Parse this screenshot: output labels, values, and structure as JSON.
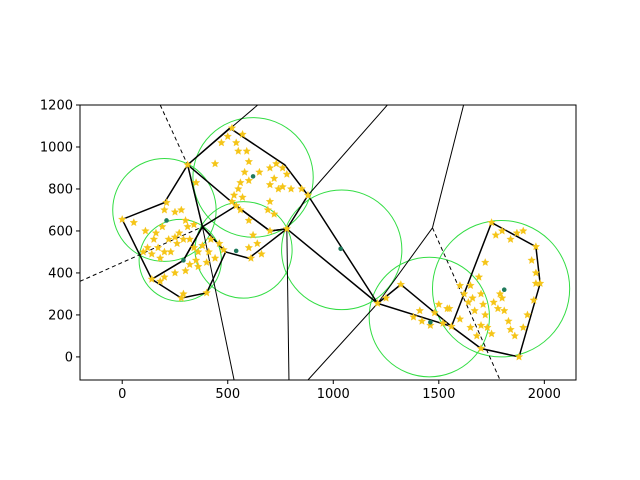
{
  "chart_data": {
    "type": "scatter",
    "title": "",
    "xlabel": "",
    "ylabel": "",
    "xlim": [
      -200,
      2150
    ],
    "ylim": [
      -110,
      1200
    ],
    "x_ticks": [
      0,
      500,
      1000,
      1500,
      2000
    ],
    "y_ticks": [
      0,
      200,
      400,
      600,
      800,
      1000,
      1200
    ],
    "grid": false,
    "legend": "none",
    "colors": {
      "points": "#f5c518",
      "sites": "#1f7a5c",
      "circles": "#33dd44",
      "edges": "#000000"
    },
    "site_points": [
      {
        "x": 210,
        "y": 650
      },
      {
        "x": 290,
        "y": 460
      },
      {
        "x": 540,
        "y": 505
      },
      {
        "x": 620,
        "y": 860
      },
      {
        "x": 1035,
        "y": 515
      },
      {
        "x": 1460,
        "y": 165
      },
      {
        "x": 1810,
        "y": 320
      }
    ],
    "circles": [
      {
        "cx": 200,
        "cy": 700,
        "r": 245
      },
      {
        "cx": 275,
        "cy": 460,
        "r": 195
      },
      {
        "cx": 575,
        "cy": 510,
        "r": 230
      },
      {
        "cx": 620,
        "cy": 855,
        "r": 285
      },
      {
        "cx": 1040,
        "cy": 510,
        "r": 285
      },
      {
        "cx": 1455,
        "cy": 190,
        "r": 285
      },
      {
        "cx": 1795,
        "cy": 325,
        "r": 325
      }
    ],
    "hulls": [
      [
        [
          0,
          655
        ],
        [
          200,
          735
        ],
        [
          310,
          915
        ],
        [
          380,
          620
        ],
        [
          290,
          460
        ],
        [
          140,
          370
        ],
        [
          0,
          655
        ]
      ],
      [
        [
          140,
          370
        ],
        [
          280,
          280
        ],
        [
          400,
          305
        ],
        [
          490,
          500
        ],
        [
          380,
          620
        ],
        [
          290,
          460
        ],
        [
          140,
          370
        ]
      ],
      [
        [
          490,
          500
        ],
        [
          600,
          470
        ],
        [
          780,
          610
        ],
        [
          700,
          600
        ],
        [
          540,
          720
        ],
        [
          380,
          620
        ],
        [
          490,
          500
        ]
      ],
      [
        [
          310,
          915
        ],
        [
          510,
          1090
        ],
        [
          770,
          915
        ],
        [
          880,
          770
        ],
        [
          780,
          610
        ],
        [
          700,
          600
        ],
        [
          540,
          720
        ],
        [
          310,
          915
        ]
      ],
      [
        [
          880,
          770
        ],
        [
          1210,
          255
        ],
        [
          780,
          610
        ]
      ],
      [
        [
          1210,
          255
        ],
        [
          1320,
          345
        ],
        [
          1560,
          145
        ],
        [
          1210,
          255
        ]
      ],
      [
        [
          1560,
          145
        ],
        [
          1750,
          640
        ],
        [
          1960,
          525
        ],
        [
          1980,
          350
        ],
        [
          1880,
          0
        ],
        [
          1700,
          40
        ],
        [
          1560,
          145
        ]
      ]
    ],
    "voronoi_edges": [
      [
        [
          700,
          1250
        ],
        [
          310,
          915
        ]
      ],
      [
        [
          310,
          915
        ],
        [
          380,
          620
        ]
      ],
      [
        [
          380,
          620
        ],
        [
          530,
          -110
        ]
      ],
      [
        [
          780,
          610
        ],
        [
          790,
          -110
        ]
      ],
      [
        [
          880,
          770
        ],
        [
          1300,
          1250
        ]
      ],
      [
        [
          1210,
          255
        ],
        [
          880,
          -110
        ]
      ],
      [
        [
          1210,
          255
        ],
        [
          1470,
          615
        ]
      ],
      [
        [
          1470,
          615
        ],
        [
          1630,
          1250
        ]
      ]
    ],
    "voronoi_edges_dashed": [
      [
        [
          180,
          1200
        ],
        [
          310,
          915
        ]
      ],
      [
        [
          -200,
          360
        ],
        [
          380,
          620
        ]
      ],
      [
        [
          1470,
          615
        ],
        [
          1790,
          -110
        ]
      ]
    ],
    "points": [
      [
        0,
        655
      ],
      [
        55,
        640
      ],
      [
        110,
        600
      ],
      [
        150,
        560
      ],
      [
        170,
        520
      ],
      [
        120,
        520
      ],
      [
        100,
        500
      ],
      [
        140,
        490
      ],
      [
        160,
        590
      ],
      [
        190,
        620
      ],
      [
        200,
        700
      ],
      [
        210,
        735
      ],
      [
        250,
        690
      ],
      [
        280,
        700
      ],
      [
        300,
        650
      ],
      [
        340,
        630
      ],
      [
        310,
        620
      ],
      [
        270,
        590
      ],
      [
        250,
        570
      ],
      [
        220,
        560
      ],
      [
        200,
        500
      ],
      [
        180,
        470
      ],
      [
        230,
        500
      ],
      [
        260,
        540
      ],
      [
        290,
        560
      ],
      [
        320,
        560
      ],
      [
        340,
        520
      ],
      [
        360,
        500
      ],
      [
        380,
        530
      ],
      [
        410,
        500
      ],
      [
        420,
        560
      ],
      [
        460,
        540
      ],
      [
        480,
        510
      ],
      [
        440,
        470
      ],
      [
        400,
        450
      ],
      [
        350,
        460
      ],
      [
        320,
        440
      ],
      [
        300,
        410
      ],
      [
        250,
        400
      ],
      [
        200,
        380
      ],
      [
        140,
        370
      ],
      [
        180,
        360
      ],
      [
        280,
        280
      ],
      [
        290,
        300
      ],
      [
        400,
        305
      ],
      [
        360,
        430
      ],
      [
        310,
        915
      ],
      [
        350,
        830
      ],
      [
        440,
        920
      ],
      [
        470,
        1020
      ],
      [
        500,
        1050
      ],
      [
        520,
        1090
      ],
      [
        570,
        1060
      ],
      [
        590,
        980
      ],
      [
        550,
        980
      ],
      [
        540,
        1020
      ],
      [
        600,
        930
      ],
      [
        580,
        880
      ],
      [
        600,
        840
      ],
      [
        560,
        830
      ],
      [
        550,
        800
      ],
      [
        530,
        770
      ],
      [
        520,
        740
      ],
      [
        540,
        720
      ],
      [
        570,
        760
      ],
      [
        650,
        880
      ],
      [
        700,
        900
      ],
      [
        730,
        920
      ],
      [
        760,
        900
      ],
      [
        780,
        870
      ],
      [
        720,
        850
      ],
      [
        700,
        820
      ],
      [
        740,
        800
      ],
      [
        760,
        810
      ],
      [
        800,
        800
      ],
      [
        850,
        800
      ],
      [
        880,
        770
      ],
      [
        700,
        740
      ],
      [
        690,
        700
      ],
      [
        720,
        680
      ],
      [
        700,
        600
      ],
      [
        780,
        610
      ],
      [
        600,
        520
      ],
      [
        610,
        470
      ],
      [
        660,
        490
      ],
      [
        640,
        540
      ],
      [
        620,
        580
      ],
      [
        600,
        650
      ],
      [
        560,
        700
      ],
      [
        1210,
        255
      ],
      [
        1250,
        280
      ],
      [
        1320,
        345
      ],
      [
        1380,
        190
      ],
      [
        1410,
        220
      ],
      [
        1420,
        170
      ],
      [
        1460,
        150
      ],
      [
        1480,
        210
      ],
      [
        1500,
        250
      ],
      [
        1520,
        160
      ],
      [
        1540,
        230
      ],
      [
        1560,
        145
      ],
      [
        1600,
        340
      ],
      [
        1620,
        300
      ],
      [
        1640,
        260
      ],
      [
        1650,
        340
      ],
      [
        1660,
        280
      ],
      [
        1670,
        220
      ],
      [
        1690,
        380
      ],
      [
        1700,
        300
      ],
      [
        1710,
        250
      ],
      [
        1720,
        200
      ],
      [
        1700,
        150
      ],
      [
        1730,
        140
      ],
      [
        1750,
        110
      ],
      [
        1760,
        260
      ],
      [
        1780,
        230
      ],
      [
        1790,
        300
      ],
      [
        1800,
        280
      ],
      [
        1810,
        220
      ],
      [
        1830,
        170
      ],
      [
        1840,
        130
      ],
      [
        1860,
        100
      ],
      [
        1880,
        0
      ],
      [
        1900,
        140
      ],
      [
        1920,
        200
      ],
      [
        1950,
        270
      ],
      [
        1960,
        350
      ],
      [
        1980,
        350
      ],
      [
        1960,
        400
      ],
      [
        1940,
        460
      ],
      [
        1960,
        525
      ],
      [
        1900,
        600
      ],
      [
        1870,
        590
      ],
      [
        1840,
        560
      ],
      [
        1800,
        600
      ],
      [
        1770,
        580
      ],
      [
        1750,
        640
      ],
      [
        1720,
        450
      ],
      [
        1700,
        40
      ],
      [
        1680,
        100
      ],
      [
        1650,
        140
      ],
      [
        1600,
        180
      ],
      [
        1550,
        230
      ]
    ]
  }
}
